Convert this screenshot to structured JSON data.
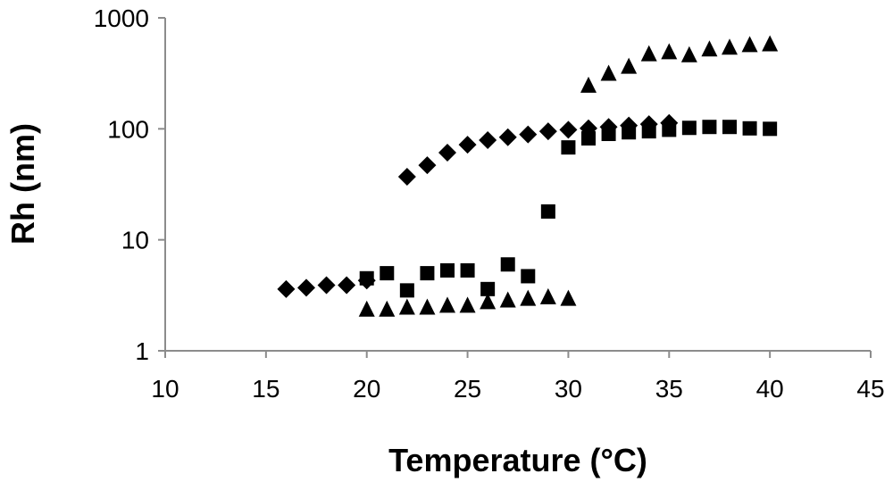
{
  "chart_data": {
    "type": "scatter",
    "title": "",
    "xlabel": "Temperature (°C)",
    "ylabel": "Rh (nm)",
    "xlim": [
      10,
      45
    ],
    "ylim": [
      1,
      1000
    ],
    "yscale": "log",
    "grid": false,
    "x_ticks": [
      10,
      15,
      20,
      25,
      30,
      35,
      40,
      45
    ],
    "y_ticks": [
      1,
      10,
      100,
      1000
    ],
    "x_tick_labels": [
      "10",
      "15",
      "20",
      "25",
      "30",
      "35",
      "40",
      "45"
    ],
    "y_tick_labels": [
      "1",
      "10",
      "100",
      "1000"
    ],
    "series": [
      {
        "marker": "diamond",
        "color": "#000000",
        "points": [
          [
            16,
            3.6
          ],
          [
            17,
            3.7
          ],
          [
            18,
            3.9
          ],
          [
            19,
            3.9
          ],
          [
            20,
            4.3
          ],
          [
            22,
            37
          ],
          [
            23,
            47
          ],
          [
            24,
            61
          ],
          [
            25,
            72
          ],
          [
            26,
            79
          ],
          [
            27,
            84
          ],
          [
            28,
            89
          ],
          [
            29,
            95
          ],
          [
            30,
            98
          ],
          [
            31,
            101
          ],
          [
            32,
            104
          ],
          [
            33,
            107
          ],
          [
            34,
            110
          ],
          [
            35,
            113
          ]
        ]
      },
      {
        "marker": "square",
        "color": "#000000",
        "points": [
          [
            20,
            4.5
          ],
          [
            21,
            5.0
          ],
          [
            22,
            3.5
          ],
          [
            23,
            5.0
          ],
          [
            24,
            5.3
          ],
          [
            25,
            5.3
          ],
          [
            26,
            3.6
          ],
          [
            27,
            6.0
          ],
          [
            28,
            4.7
          ],
          [
            29,
            18
          ],
          [
            30,
            68
          ],
          [
            31,
            82
          ],
          [
            32,
            90
          ],
          [
            33,
            93
          ],
          [
            34,
            95
          ],
          [
            35,
            98
          ],
          [
            36,
            102
          ],
          [
            37,
            104
          ],
          [
            38,
            104
          ],
          [
            39,
            101
          ],
          [
            40,
            100
          ]
        ]
      },
      {
        "marker": "triangle",
        "color": "#000000",
        "points": [
          [
            20,
            2.4
          ],
          [
            21,
            2.4
          ],
          [
            22,
            2.5
          ],
          [
            23,
            2.5
          ],
          [
            24,
            2.6
          ],
          [
            25,
            2.6
          ],
          [
            26,
            2.8
          ],
          [
            27,
            2.9
          ],
          [
            28,
            3.0
          ],
          [
            29,
            3.1
          ],
          [
            30,
            3.0
          ],
          [
            31,
            250
          ],
          [
            32,
            320
          ],
          [
            33,
            370
          ],
          [
            34,
            480
          ],
          [
            35,
            500
          ],
          [
            36,
            470
          ],
          [
            37,
            530
          ],
          [
            38,
            550
          ],
          [
            39,
            580
          ],
          [
            40,
            590
          ]
        ]
      }
    ]
  }
}
